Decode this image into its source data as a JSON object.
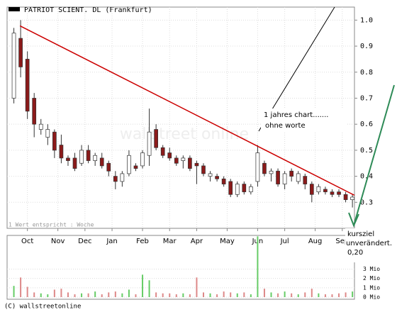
{
  "chart_data": [
    {
      "type": "candlestick",
      "legend_label": "PATRIOT SCIENT. DL (Frankfurt)",
      "note": "1 Wert entspricht : Woche",
      "watermark": "wallstreet online",
      "xlim": [
        -1,
        50.3
      ],
      "xticks": [
        {
          "value": 2,
          "label": "Oct"
        },
        {
          "value": 6.5,
          "label": "Nov"
        },
        {
          "value": 10.5,
          "label": "Dec"
        },
        {
          "value": 14.5,
          "label": "Jan"
        },
        {
          "value": 19,
          "label": "Feb"
        },
        {
          "value": 23,
          "label": "Mar"
        },
        {
          "value": 27,
          "label": "Apr"
        },
        {
          "value": 31.5,
          "label": "May"
        },
        {
          "value": 36,
          "label": "Jun"
        },
        {
          "value": 40,
          "label": "Jul"
        },
        {
          "value": 44.5,
          "label": "Aug"
        },
        {
          "value": 48.5,
          "label": "Sep"
        }
      ],
      "ylim": [
        0.2,
        1.05
      ],
      "yticks": [
        0.3,
        0.4,
        0.5,
        0.6,
        0.7,
        0.8,
        0.9,
        {
          "value": 1,
          "label": "1.0"
        }
      ],
      "grid": true,
      "up_color": "#ffffff",
      "down_color": "#8b1a1a",
      "open": [
        0.7,
        0.93,
        0.85,
        0.7,
        0.58,
        0.55,
        0.57,
        0.52,
        0.47,
        0.47,
        0.45,
        0.5,
        0.46,
        0.47,
        0.45,
        0.4,
        0.38,
        0.41,
        0.44,
        0.44,
        0.48,
        0.58,
        0.51,
        0.49,
        0.47,
        0.46,
        0.47,
        0.45,
        0.44,
        0.4,
        0.4,
        0.39,
        0.38,
        0.33,
        0.37,
        0.34,
        0.38,
        0.45,
        0.41,
        0.42,
        0.37,
        0.42,
        0.38,
        0.4,
        0.37,
        0.34,
        0.35,
        0.34,
        0.34,
        0.33,
        0.31
      ],
      "high": [
        0.97,
        1.0,
        0.88,
        0.72,
        0.62,
        0.6,
        0.58,
        0.56,
        0.48,
        0.49,
        0.52,
        0.52,
        0.49,
        0.49,
        0.46,
        0.42,
        0.42,
        0.5,
        0.45,
        0.5,
        0.66,
        0.6,
        0.52,
        0.51,
        0.48,
        0.48,
        0.48,
        0.46,
        0.45,
        0.42,
        0.41,
        0.4,
        0.39,
        0.38,
        0.38,
        0.37,
        0.52,
        0.46,
        0.43,
        0.43,
        0.42,
        0.43,
        0.42,
        0.41,
        0.38,
        0.37,
        0.36,
        0.35,
        0.35,
        0.34,
        0.33
      ],
      "low": [
        0.68,
        0.78,
        0.62,
        0.55,
        0.56,
        0.52,
        0.47,
        0.45,
        0.44,
        0.42,
        0.44,
        0.45,
        0.44,
        0.43,
        0.4,
        0.35,
        0.36,
        0.4,
        0.42,
        0.43,
        0.44,
        0.5,
        0.47,
        0.46,
        0.44,
        0.43,
        0.42,
        0.37,
        0.4,
        0.38,
        0.38,
        0.36,
        0.32,
        0.32,
        0.33,
        0.33,
        0.36,
        0.4,
        0.38,
        0.36,
        0.35,
        0.38,
        0.37,
        0.35,
        0.3,
        0.33,
        0.33,
        0.32,
        0.32,
        0.3,
        0.28
      ],
      "close": [
        0.95,
        0.82,
        0.65,
        0.6,
        0.6,
        0.58,
        0.5,
        0.47,
        0.46,
        0.43,
        0.5,
        0.46,
        0.48,
        0.44,
        0.42,
        0.38,
        0.41,
        0.48,
        0.43,
        0.49,
        0.57,
        0.51,
        0.48,
        0.47,
        0.45,
        0.47,
        0.43,
        0.44,
        0.41,
        0.41,
        0.39,
        0.37,
        0.33,
        0.37,
        0.34,
        0.36,
        0.49,
        0.41,
        0.42,
        0.37,
        0.41,
        0.4,
        0.41,
        0.37,
        0.33,
        0.36,
        0.34,
        0.33,
        0.33,
        0.31,
        0.32
      ],
      "trendline": {
        "color": "#cc0000",
        "x": [
          0.9,
          50.3
        ],
        "y": [
          0.978,
          0.327
        ]
      }
    },
    {
      "type": "bar",
      "xlim": [
        -1,
        50.3
      ],
      "ylim": [
        0,
        6.6
      ],
      "yticks": [
        {
          "value": 0,
          "label": "0 Mio"
        },
        {
          "value": 1,
          "label": "1 Mio"
        },
        {
          "value": 2,
          "label": "2 Mio"
        },
        {
          "value": 3,
          "label": "3 Mio"
        }
      ],
      "up_color": "#66cc66",
      "down_color": "#dd8888",
      "values": [
        1.2,
        2.1,
        1.1,
        0.5,
        0.4,
        0.3,
        0.8,
        0.9,
        0.5,
        0.3,
        0.4,
        0.4,
        0.6,
        0.3,
        0.5,
        0.6,
        0.4,
        0.8,
        0.3,
        2.4,
        1.8,
        0.5,
        0.4,
        0.4,
        0.3,
        0.4,
        0.3,
        2.1,
        0.5,
        0.4,
        0.3,
        0.6,
        0.5,
        0.4,
        0.5,
        0.3,
        6.5,
        0.9,
        0.5,
        0.4,
        0.6,
        0.4,
        0.3,
        0.5,
        0.9,
        0.4,
        0.3,
        0.3,
        0.4,
        0.5,
        0.6
      ]
    }
  ],
  "annotations": {
    "comment_line1": "1 jahres chart.......",
    "comment_line2": "ohne worte",
    "target_line1": "kursziel",
    "target_line2": "unverändert.",
    "target_line3": "0,20"
  },
  "footer": "(C) wallstreetonline"
}
